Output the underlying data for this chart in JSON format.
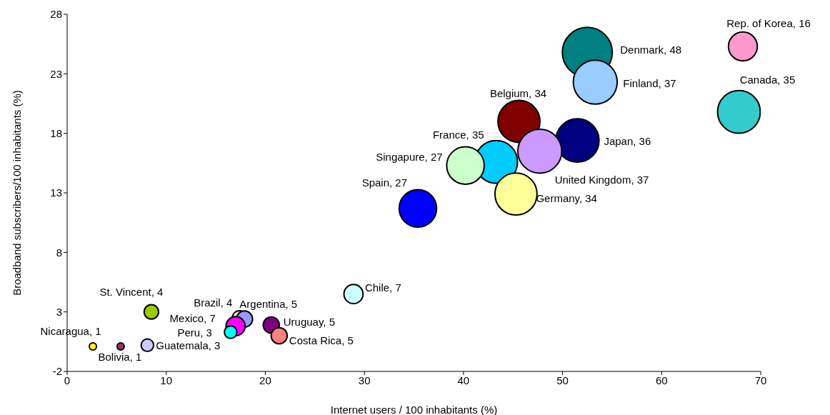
{
  "chart_data": {
    "type": "bubble",
    "xlabel": "Internet users / 100 inhabitants (%)",
    "ylabel": "Broadband subscribers/100 inhabitants (%)",
    "xlim": [
      0,
      70
    ],
    "xticks": [
      0,
      10,
      20,
      30,
      40,
      50,
      60,
      70
    ],
    "ylim": [
      -2,
      28
    ],
    "yticks": [
      -2,
      3,
      8,
      13,
      18,
      23,
      28
    ],
    "grid": false,
    "legend": false,
    "x": [
      2.6,
      5.4,
      8.1,
      8.5,
      17.4,
      17.9,
      17.0,
      16.5,
      20.6,
      21.4,
      28.9,
      35.4,
      45.6,
      51.5,
      43.3,
      40.2,
      47.7,
      45.3,
      52.5,
      53.3,
      67.8,
      68.2
    ],
    "values": [
      0.1,
      0.1,
      0.2,
      3.0,
      2.5,
      2.4,
      1.8,
      1.3,
      1.9,
      1.0,
      4.5,
      11.7,
      19.0,
      17.4,
      15.6,
      15.3,
      16.5,
      12.9,
      24.8,
      22.3,
      19.8,
      25.3
    ],
    "sizes": [
      1,
      1,
      3,
      4,
      4,
      5,
      7,
      3,
      5,
      5,
      7,
      27,
      34,
      36,
      35,
      27,
      37,
      34,
      48,
      37,
      35,
      16
    ],
    "colors": [
      "#ffff00",
      "#993366",
      "#ccccff",
      "#99cc00",
      "#ffffcc",
      "#9999ff",
      "#ff00ff",
      "#00ffff",
      "#800080",
      "#ff8080",
      "#ccffff",
      "#0000ff",
      "#800000",
      "#000080",
      "#00ccff",
      "#ccffcc",
      "#cc99ff",
      "#ffff99",
      "#008080",
      "#99ccff",
      "#33cccc",
      "#ff99cc"
    ],
    "value_labels": [
      "Nicaragua, 1",
      "Bolivia, 1",
      "Guatemala, 3",
      "St. Vincent, 4",
      "Brazil, 4",
      "Argentina, 5",
      "Mexico, 7",
      "Peru, 3",
      "Uruguay, 5",
      "Costa Rica, 5",
      "Chile, 7",
      "Spain, 27",
      "Belgium, 34",
      "Japan, 36",
      "France, 35",
      "Singapure, 27",
      "United Kingdom, 37",
      "Germany, 34",
      "Denmark, 48",
      "Finland, 37",
      "Canada, 35",
      "Rep. of Korea, 16"
    ]
  }
}
